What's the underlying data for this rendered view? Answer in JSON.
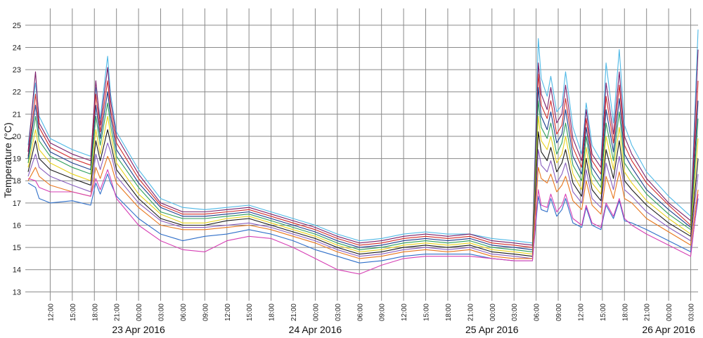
{
  "chart_data": {
    "type": "line",
    "title": "",
    "ylabel": "Temperature (°C)",
    "xlabel": "",
    "ylim": [
      12.6,
      25.5
    ],
    "yticks": [
      13,
      14,
      15,
      16,
      17,
      18,
      19,
      20,
      21,
      22,
      23,
      24,
      25
    ],
    "ytick_labels": [
      "13",
      "14",
      "15",
      "16",
      "17",
      "18",
      "19",
      "20",
      "21",
      "22",
      "23",
      "24",
      "25"
    ],
    "x_unit": "hours from 09:00 on 22 Apr 2016",
    "xlim": [
      0,
      91
    ],
    "xticks": [
      {
        "h": 3,
        "label": "12:00"
      },
      {
        "h": 6,
        "label": "15:00"
      },
      {
        "h": 9,
        "label": "18:00"
      },
      {
        "h": 12,
        "label": "21:00"
      },
      {
        "h": 15,
        "label": "00:00"
      },
      {
        "h": 18,
        "label": "03:00"
      },
      {
        "h": 21,
        "label": "06:00"
      },
      {
        "h": 24,
        "label": "09:00"
      },
      {
        "h": 27,
        "label": "12:00"
      },
      {
        "h": 30,
        "label": "15:00"
      },
      {
        "h": 33,
        "label": "18:00"
      },
      {
        "h": 36,
        "label": "21:00"
      },
      {
        "h": 39,
        "label": "00:00"
      },
      {
        "h": 42,
        "label": "03:00"
      },
      {
        "h": 45,
        "label": "06:00"
      },
      {
        "h": 48,
        "label": "09:00"
      },
      {
        "h": 51,
        "label": "12:00"
      },
      {
        "h": 54,
        "label": "15:00"
      },
      {
        "h": 57,
        "label": "18:00"
      },
      {
        "h": 60,
        "label": "21:00"
      },
      {
        "h": 63,
        "label": "00:00"
      },
      {
        "h": 66,
        "label": "03:00"
      },
      {
        "h": 69,
        "label": "06:00"
      },
      {
        "h": 72,
        "label": "09:00"
      },
      {
        "h": 75,
        "label": "12:00"
      },
      {
        "h": 78,
        "label": "15:00"
      },
      {
        "h": 81,
        "label": "18:00"
      },
      {
        "h": 84,
        "label": "21:00"
      },
      {
        "h": 87,
        "label": "00:00"
      },
      {
        "h": 90,
        "label": "03:00"
      }
    ],
    "date_labels": [
      {
        "h": 15,
        "label": "23 Apr 2016"
      },
      {
        "h": 39,
        "label": "24 Apr 2016"
      },
      {
        "h": 63,
        "label": "25 Apr 2016"
      },
      {
        "h": 87,
        "label": "26 Apr 2016"
      }
    ],
    "grid": true,
    "legend": "none",
    "x": [
      0,
      1,
      1.5,
      3,
      6,
      8.5,
      9.2,
      9.8,
      10.8,
      11.2,
      12,
      15,
      18,
      21,
      24,
      27,
      30,
      33,
      36,
      39,
      42,
      45,
      48,
      51,
      54,
      57,
      60,
      63,
      66,
      68.5,
      69.3,
      69.7,
      70.5,
      71,
      71.8,
      72.5,
      73,
      74,
      75.2,
      75.8,
      76.6,
      77.8,
      78.5,
      79.5,
      80.3,
      81,
      82,
      84,
      87,
      90,
      91
    ],
    "series": [
      {
        "color": "#4fb8e6",
        "values": [
          19.6,
          22.4,
          20.9,
          19.9,
          19.4,
          19.1,
          22.2,
          20.8,
          23.6,
          21.9,
          20.2,
          18.5,
          17.2,
          16.8,
          16.7,
          16.8,
          16.9,
          16.6,
          16.3,
          16.0,
          15.6,
          15.3,
          15.4,
          15.6,
          15.7,
          15.6,
          15.6,
          15.4,
          15.3,
          15.2,
          24.4,
          22.6,
          21.8,
          22.7,
          21.1,
          21.4,
          22.9,
          20.4,
          19.2,
          21.5,
          19.6,
          18.9,
          23.3,
          20.6,
          23.9,
          20.5,
          19.6,
          18.4,
          17.3,
          16.4,
          24.8
        ]
      },
      {
        "color": "#7a1f6a",
        "values": [
          19.3,
          22.9,
          20.6,
          19.7,
          19.2,
          18.9,
          22.5,
          20.5,
          23.1,
          21.6,
          20.0,
          18.3,
          17.0,
          16.6,
          16.6,
          16.7,
          16.8,
          16.5,
          16.2,
          15.9,
          15.5,
          15.2,
          15.3,
          15.5,
          15.6,
          15.5,
          15.6,
          15.3,
          15.2,
          15.1,
          23.3,
          21.9,
          21.2,
          22.2,
          20.6,
          21.0,
          22.3,
          19.9,
          18.9,
          21.2,
          19.2,
          18.6,
          22.4,
          20.1,
          22.9,
          20.0,
          19.2,
          18.1,
          17.0,
          16.2,
          23.9
        ]
      },
      {
        "color": "#d02b2b",
        "values": [
          19.1,
          21.9,
          20.4,
          19.5,
          19.0,
          18.7,
          21.9,
          20.2,
          22.5,
          21.2,
          19.7,
          18.1,
          16.9,
          16.5,
          16.5,
          16.6,
          16.7,
          16.4,
          16.1,
          15.8,
          15.4,
          15.1,
          15.2,
          15.4,
          15.5,
          15.4,
          15.5,
          15.2,
          15.1,
          15.0,
          22.8,
          21.4,
          20.8,
          21.6,
          20.1,
          20.5,
          21.7,
          19.5,
          18.6,
          20.8,
          18.9,
          18.3,
          21.8,
          19.7,
          22.3,
          19.6,
          18.9,
          17.9,
          16.9,
          16.0,
          22.5
        ]
      },
      {
        "color": "#1c3d8c",
        "values": [
          19.0,
          21.4,
          20.1,
          19.3,
          18.8,
          18.5,
          21.4,
          19.9,
          22.0,
          20.9,
          19.4,
          17.9,
          16.8,
          16.4,
          16.4,
          16.5,
          16.6,
          16.3,
          16.0,
          15.7,
          15.3,
          15.0,
          15.1,
          15.3,
          15.4,
          15.3,
          15.4,
          15.1,
          15.0,
          14.9,
          22.2,
          20.9,
          20.3,
          21.1,
          19.7,
          20.1,
          21.2,
          19.1,
          18.3,
          20.4,
          18.6,
          18.0,
          21.2,
          19.3,
          21.7,
          19.2,
          18.6,
          17.6,
          16.7,
          15.9,
          21.6
        ]
      },
      {
        "color": "#2e9e5b",
        "values": [
          18.8,
          20.9,
          19.8,
          19.1,
          18.6,
          18.3,
          20.9,
          19.6,
          21.5,
          20.5,
          19.1,
          17.7,
          16.6,
          16.3,
          16.3,
          16.4,
          16.5,
          16.2,
          15.9,
          15.6,
          15.2,
          14.9,
          15.0,
          15.2,
          15.3,
          15.2,
          15.3,
          15.0,
          14.9,
          14.8,
          21.6,
          20.4,
          19.9,
          20.6,
          19.2,
          19.7,
          20.6,
          18.7,
          18.0,
          20.0,
          18.3,
          17.7,
          20.6,
          18.9,
          21.1,
          18.8,
          18.3,
          17.4,
          16.5,
          15.8,
          20.8
        ]
      },
      {
        "color": "#e8d21c",
        "values": [
          18.6,
          20.3,
          19.4,
          18.8,
          18.3,
          18.0,
          20.3,
          19.2,
          20.9,
          20.1,
          18.8,
          17.4,
          16.5,
          16.1,
          16.1,
          16.3,
          16.4,
          16.1,
          15.8,
          15.5,
          15.1,
          14.8,
          14.9,
          15.1,
          15.2,
          15.1,
          15.2,
          14.9,
          14.8,
          14.7,
          20.9,
          19.8,
          19.4,
          20.0,
          18.8,
          19.2,
          20.0,
          18.3,
          17.6,
          19.5,
          17.9,
          17.4,
          20.0,
          18.5,
          20.4,
          18.4,
          17.9,
          17.1,
          16.3,
          15.6,
          19.9
        ]
      },
      {
        "color": "#1a1a1a",
        "values": [
          18.4,
          19.8,
          19.0,
          18.5,
          18.1,
          17.8,
          19.8,
          18.9,
          20.3,
          19.7,
          18.5,
          17.2,
          16.3,
          16.0,
          16.0,
          16.2,
          16.3,
          16.0,
          15.7,
          15.4,
          15.0,
          14.7,
          14.8,
          15.0,
          15.1,
          15.0,
          15.1,
          14.8,
          14.7,
          14.6,
          20.2,
          19.3,
          18.9,
          19.5,
          18.4,
          18.8,
          19.4,
          17.9,
          17.3,
          19.0,
          17.6,
          17.1,
          19.4,
          18.1,
          19.8,
          18.0,
          17.6,
          16.9,
          16.1,
          15.5,
          19.0
        ]
      },
      {
        "color": "#8a5fbf",
        "values": [
          18.2,
          19.2,
          18.6,
          18.2,
          17.8,
          17.5,
          19.2,
          18.5,
          19.7,
          19.3,
          18.2,
          17.0,
          16.2,
          15.9,
          15.9,
          16.0,
          16.1,
          15.9,
          15.6,
          15.3,
          14.9,
          14.6,
          14.7,
          14.9,
          15.0,
          14.9,
          15.0,
          14.7,
          14.6,
          14.5,
          19.4,
          18.7,
          18.4,
          18.9,
          17.9,
          18.3,
          18.8,
          17.5,
          17.0,
          18.5,
          17.2,
          16.8,
          18.8,
          17.6,
          19.1,
          17.6,
          17.3,
          16.6,
          15.9,
          15.3,
          18.3
        ]
      },
      {
        "color": "#e8761c",
        "values": [
          18.0,
          18.6,
          18.2,
          17.8,
          17.5,
          17.3,
          18.6,
          18.1,
          19.1,
          18.8,
          17.9,
          16.8,
          16.0,
          15.8,
          15.8,
          15.9,
          16.0,
          15.8,
          15.5,
          15.2,
          14.8,
          14.5,
          14.6,
          14.8,
          14.9,
          14.8,
          14.9,
          14.6,
          14.5,
          14.5,
          18.6,
          18.1,
          17.9,
          18.3,
          17.5,
          17.8,
          18.2,
          17.1,
          16.7,
          18.0,
          16.9,
          16.5,
          18.2,
          17.2,
          18.4,
          17.2,
          17.0,
          16.3,
          15.7,
          15.1,
          17.6
        ]
      },
      {
        "color": "#2f6fc9",
        "values": [
          17.9,
          17.7,
          17.2,
          17.0,
          17.1,
          16.9,
          17.9,
          17.4,
          18.3,
          17.9,
          17.3,
          16.3,
          15.6,
          15.3,
          15.5,
          15.6,
          15.8,
          15.6,
          15.3,
          14.9,
          14.6,
          14.3,
          14.4,
          14.6,
          14.7,
          14.7,
          14.7,
          14.5,
          14.4,
          14.4,
          17.3,
          16.7,
          16.6,
          17.2,
          16.4,
          16.7,
          17.2,
          16.1,
          15.9,
          16.8,
          16.0,
          15.8,
          16.9,
          16.3,
          17.1,
          16.2,
          16.1,
          15.8,
          15.3,
          14.8,
          17.2
        ]
      },
      {
        "color": "#d63fb4",
        "values": [
          18.1,
          18.0,
          17.7,
          17.5,
          17.5,
          17.3,
          18.1,
          17.6,
          18.5,
          18.1,
          17.2,
          16.0,
          15.3,
          14.9,
          14.8,
          15.3,
          15.5,
          15.4,
          15.0,
          14.5,
          14.0,
          13.8,
          14.2,
          14.5,
          14.6,
          14.6,
          14.6,
          14.5,
          14.4,
          14.4,
          17.6,
          16.9,
          16.8,
          17.4,
          16.6,
          16.9,
          17.4,
          16.3,
          16.0,
          16.9,
          16.1,
          15.9,
          17.0,
          16.4,
          17.2,
          16.3,
          16.0,
          15.6,
          15.1,
          14.6,
          17.4
        ]
      }
    ]
  }
}
